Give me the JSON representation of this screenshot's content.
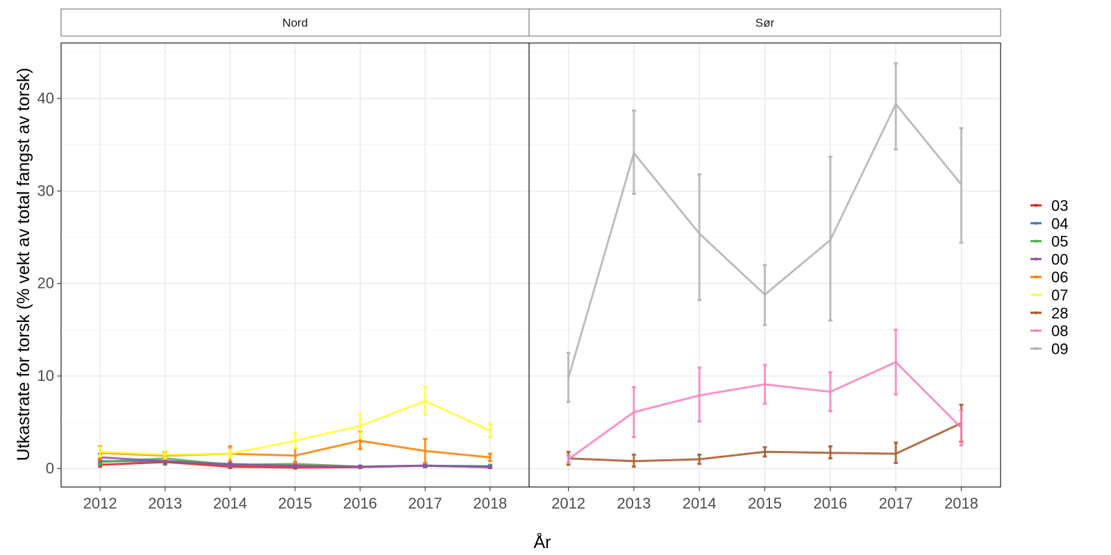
{
  "chart_data": {
    "type": "line",
    "facets": [
      "Nord",
      "Sør"
    ],
    "x": [
      2012,
      2013,
      2014,
      2015,
      2016,
      2017,
      2018
    ],
    "xlabel": "År",
    "ylabel": "Utkastrate for torsk (% vekt av total fangst av torsk)",
    "ylim": [
      -2,
      46
    ],
    "yticks": [
      0,
      10,
      20,
      30,
      40
    ],
    "grid": true,
    "error_bars": true,
    "legend_position": "right",
    "series": [
      {
        "name": "03",
        "color": "#E41A1C",
        "facet": "Nord",
        "values": [
          0.4,
          0.7,
          0.2,
          0.1,
          0.15,
          0.3,
          0.15
        ],
        "lower": [
          0.2,
          0.5,
          0.05,
          0.0,
          0.05,
          0.15,
          0.05
        ],
        "upper": [
          0.6,
          0.9,
          0.35,
          0.25,
          0.3,
          0.45,
          0.3
        ]
      },
      {
        "name": "04",
        "color": "#377EB8",
        "facet": "Nord",
        "values": [
          0.8,
          0.8,
          0.5,
          0.3,
          0.2,
          0.3,
          0.25
        ],
        "lower": [
          0.5,
          0.5,
          0.3,
          0.15,
          0.1,
          0.15,
          0.1
        ],
        "upper": [
          1.1,
          1.1,
          0.7,
          0.45,
          0.3,
          0.45,
          0.4
        ]
      },
      {
        "name": "05",
        "color": "#4DAF4A",
        "facet": "Nord",
        "values": [
          0.7,
          1.1,
          0.4,
          0.5,
          0.2,
          0.3,
          0.2
        ],
        "lower": [
          0.4,
          0.4,
          0.2,
          0.3,
          0.1,
          0.15,
          0.1
        ],
        "upper": [
          1.0,
          1.8,
          0.6,
          0.7,
          0.3,
          0.45,
          0.3
        ]
      },
      {
        "name": "00",
        "color": "#984EA3",
        "facet": "Nord",
        "values": [
          1.2,
          0.8,
          0.4,
          0.3,
          0.2,
          0.3,
          0.15
        ],
        "lower": [
          0.8,
          0.5,
          0.2,
          0.15,
          0.1,
          0.15,
          0.05
        ],
        "upper": [
          1.6,
          1.1,
          0.6,
          0.45,
          0.3,
          0.45,
          0.25
        ]
      },
      {
        "name": "06",
        "color": "#FF7F00",
        "facet": "Nord",
        "values": [
          1.7,
          1.4,
          1.6,
          1.4,
          3.0,
          1.9,
          1.2
        ],
        "lower": [
          1.0,
          1.0,
          0.8,
          0.6,
          2.1,
          0.6,
          0.8
        ],
        "upper": [
          2.4,
          1.8,
          2.4,
          2.2,
          4.0,
          3.2,
          1.6
        ]
      },
      {
        "name": "07",
        "color": "#FFFF33",
        "facet": "Nord",
        "values": [
          1.8,
          1.5,
          1.6,
          3.0,
          4.6,
          7.3,
          4.1
        ],
        "lower": [
          1.3,
          1.1,
          1.2,
          2.2,
          3.3,
          5.8,
          3.4
        ],
        "upper": [
          2.3,
          1.9,
          2.0,
          3.8,
          5.9,
          8.8,
          4.8
        ]
      },
      {
        "name": "28",
        "color": "#A65628",
        "facet": "Sør",
        "values": [
          1.1,
          0.8,
          1.0,
          1.8,
          1.7,
          1.6,
          4.9
        ],
        "lower": [
          0.4,
          0.2,
          0.5,
          1.3,
          1.1,
          0.6,
          2.9
        ],
        "upper": [
          1.8,
          1.5,
          1.5,
          2.3,
          2.4,
          2.8,
          6.9
        ]
      },
      {
        "name": "08",
        "color": "#F781BF",
        "facet": "Sør",
        "values": [
          1.0,
          6.1,
          7.9,
          9.1,
          8.3,
          11.5,
          4.4
        ],
        "lower": [
          0.6,
          3.4,
          5.1,
          7.0,
          6.2,
          8.0,
          2.5
        ],
        "upper": [
          1.4,
          8.8,
          10.9,
          11.2,
          10.4,
          15.0,
          6.3
        ]
      },
      {
        "name": "09",
        "color": "#B3B3B3",
        "facet": "Sør",
        "values": [
          9.8,
          34.1,
          25.4,
          18.8,
          24.7,
          39.4,
          30.7
        ],
        "lower": [
          7.2,
          29.7,
          18.2,
          15.5,
          16.0,
          34.5,
          24.4
        ],
        "upper": [
          12.5,
          38.7,
          31.8,
          22.0,
          33.7,
          43.8,
          36.8
        ]
      }
    ]
  }
}
